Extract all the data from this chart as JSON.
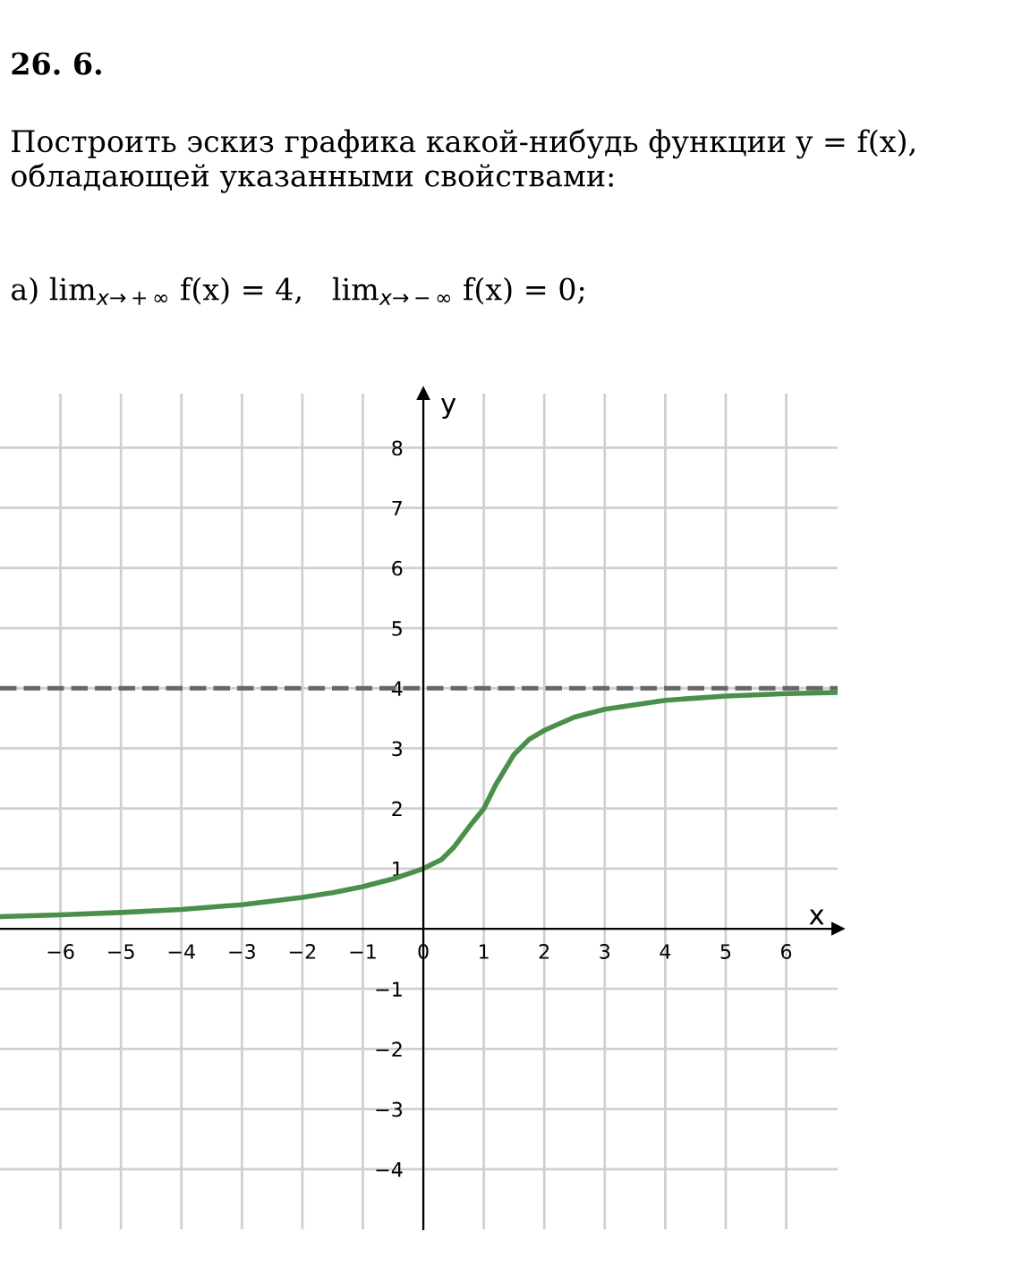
{
  "chart_data": {
    "type": "line",
    "title": "26. 6.",
    "subtitle": "Построить эскиз графика какой-нибудь функции y = f(x), обладающей указанными свойствами:",
    "annotations": [
      "а) lim$_{x→+∞}$ f(x) = 4,   lim$_{x→−∞}$ f(x) = 0;"
    ],
    "xlabel": "x",
    "ylabel": "y",
    "series": [
      {
        "color": "#4a8f4a",
        "x": [
          -7,
          -6,
          -5,
          -4,
          -3,
          -2,
          -1.5,
          -1,
          -0.5,
          0,
          0.3,
          0.5,
          0.8,
          1,
          1.2,
          1.5,
          1.75,
          2,
          2.5,
          3,
          4,
          5,
          6,
          6.85
        ],
        "values": [
          0.2,
          0.23,
          0.27,
          0.32,
          0.4,
          0.52,
          0.6,
          0.7,
          0.83,
          1.0,
          1.15,
          1.35,
          1.75,
          2.0,
          2.4,
          2.9,
          3.15,
          3.3,
          3.52,
          3.65,
          3.8,
          3.87,
          3.91,
          3.93
        ]
      }
    ],
    "ref_lines": [
      {
        "axis": "y",
        "value": 4,
        "color": "#666666",
        "line_style": "dashed"
      }
    ],
    "xlim": [
      -7,
      6.85
    ],
    "ylim": [
      -5,
      8.9
    ],
    "xticks": [
      -6,
      -5,
      -4,
      -3,
      -2,
      -1,
      0,
      1,
      2,
      3,
      4,
      5,
      6
    ],
    "yticks": [
      -4,
      -3,
      -2,
      -1,
      1,
      2,
      3,
      4,
      5,
      6,
      7,
      8
    ],
    "grid": true,
    "line_style": "solid",
    "marker": "none"
  }
}
